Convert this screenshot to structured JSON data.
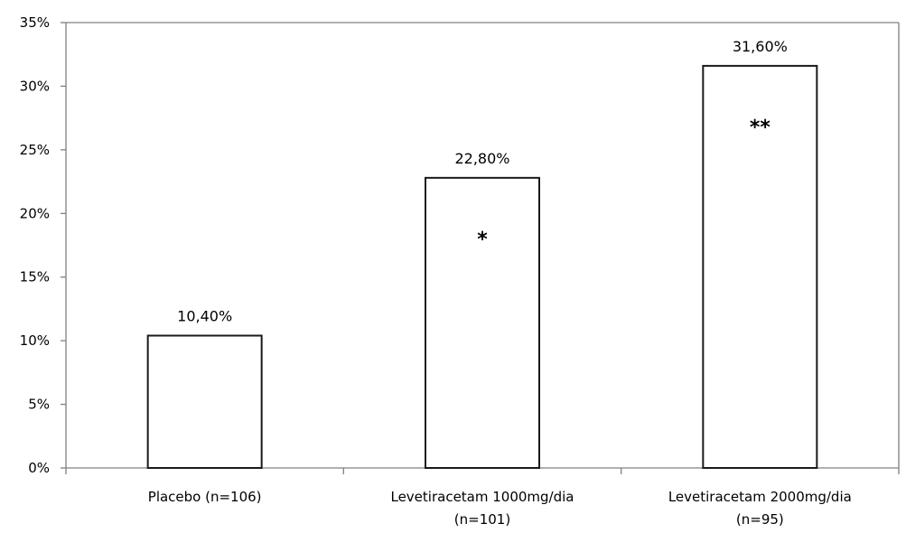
{
  "chart_data": {
    "type": "bar",
    "categories": [
      [
        "Placebo (n=106)"
      ],
      [
        "Levetiracetam 1000mg/dia",
        "(n=101)"
      ],
      [
        "Levetiracetam 2000mg/dia",
        "(n=95)"
      ]
    ],
    "values": [
      10.4,
      22.8,
      31.6
    ],
    "data_labels": [
      "10,40%",
      "22,80%",
      "31,60%"
    ],
    "significance_marks": [
      "",
      "*",
      "**"
    ],
    "ylim": [
      0,
      35
    ],
    "y_ticks": [
      0,
      5,
      10,
      15,
      20,
      25,
      30,
      35
    ],
    "y_tick_labels": [
      "0%",
      "5%",
      "10%",
      "15%",
      "20%",
      "25%",
      "30%",
      "35%"
    ],
    "title": "",
    "xlabel": "",
    "ylabel": "",
    "grid": false,
    "legend": "none",
    "bar_fill": "#ffffff",
    "bar_stroke": "#1a1a1a",
    "axis_color": "#808080"
  }
}
